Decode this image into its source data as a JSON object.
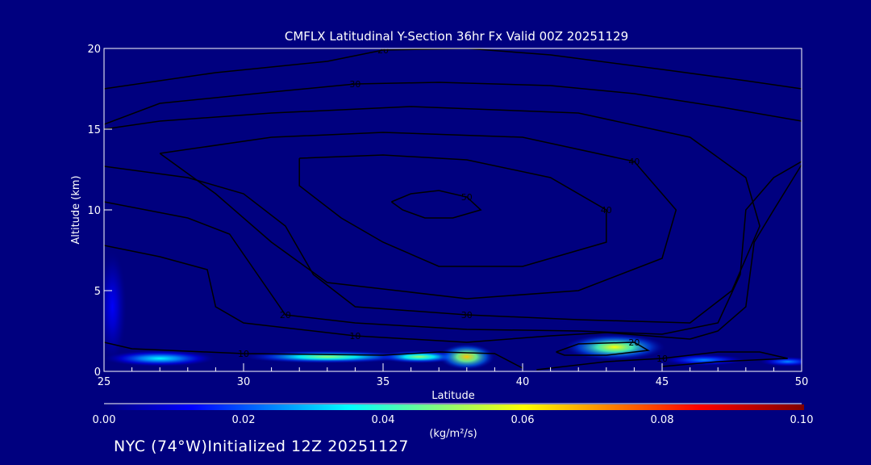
{
  "chart_data": {
    "type": "heatmap",
    "title": "CMFLX Latitudinal Y-Section 36hr  Fx Valid 00Z 20251129",
    "xlabel": "Latitude",
    "ylabel": "Altitude (km)",
    "xlim": [
      25,
      50
    ],
    "ylim": [
      0,
      20
    ],
    "xticks": [
      "25",
      "30",
      "35",
      "40",
      "45",
      "50"
    ],
    "yticks": [
      "0",
      "5",
      "10",
      "15",
      "20"
    ],
    "colorbar": {
      "ticks": [
        "0.00",
        "0.02",
        "0.04",
        "0.06",
        "0.08",
        "0.10"
      ],
      "range": [
        0,
        0.1
      ],
      "units": "(kg/m²/s)"
    },
    "hotspots": [
      {
        "lat": 25.3,
        "alt": 4.0,
        "value": 0.012,
        "rx": 0.5,
        "ry": 3.5
      },
      {
        "lat": 27.0,
        "alt": 0.8,
        "value": 0.035,
        "rx": 2.0,
        "ry": 0.5
      },
      {
        "lat": 33.0,
        "alt": 0.9,
        "value": 0.05,
        "rx": 3.0,
        "ry": 0.4
      },
      {
        "lat": 36.3,
        "alt": 0.9,
        "value": 0.05,
        "rx": 1.5,
        "ry": 0.4
      },
      {
        "lat": 38.0,
        "alt": 0.9,
        "value": 0.066,
        "rx": 1.0,
        "ry": 0.8
      },
      {
        "lat": 43.3,
        "alt": 1.5,
        "value": 0.06,
        "rx": 1.8,
        "ry": 0.8
      },
      {
        "lat": 46.5,
        "alt": 0.7,
        "value": 0.025,
        "rx": 1.5,
        "ry": 0.35
      },
      {
        "lat": 49.5,
        "alt": 0.6,
        "value": 0.025,
        "rx": 1.0,
        "ry": 0.3
      }
    ],
    "contours": [
      {
        "label": "20",
        "points": [
          [
            25,
            17.5
          ],
          [
            29,
            18.5
          ],
          [
            33,
            19.2
          ],
          [
            35,
            19.9
          ],
          [
            38,
            20
          ],
          [
            41,
            19.6
          ],
          [
            45,
            18.7
          ],
          [
            48,
            18.0
          ],
          [
            50,
            17.5
          ]
        ]
      },
      {
        "label": "30",
        "points": [
          [
            25,
            15.3
          ],
          [
            27,
            16.6
          ],
          [
            31,
            17.3
          ],
          [
            34,
            17.8
          ],
          [
            37,
            17.9
          ],
          [
            41,
            17.7
          ],
          [
            44,
            17.2
          ],
          [
            47,
            16.4
          ],
          [
            50,
            15.5
          ]
        ]
      },
      {
        "label": "40",
        "points": [
          [
            27,
            13.5
          ],
          [
            31,
            14.5
          ],
          [
            35,
            14.8
          ],
          [
            40,
            14.5
          ],
          [
            44,
            13
          ],
          [
            45.5,
            10
          ],
          [
            45,
            7
          ],
          [
            42,
            5
          ],
          [
            38,
            4.5
          ],
          [
            33,
            5.5
          ],
          [
            31,
            8
          ],
          [
            29,
            11
          ],
          [
            27,
            13.5
          ]
        ]
      },
      {
        "label": "40",
        "points": [
          [
            32,
            13.2
          ],
          [
            35,
            13.4
          ],
          [
            38,
            13.1
          ],
          [
            41,
            12
          ],
          [
            43,
            10
          ],
          [
            43,
            8
          ],
          [
            40,
            6.5
          ],
          [
            37,
            6.5
          ],
          [
            35,
            8
          ],
          [
            33.5,
            9.5
          ],
          [
            32,
            11.5
          ],
          [
            32,
            13.2
          ]
        ]
      },
      {
        "label": "50",
        "points": [
          [
            35.3,
            10.5
          ],
          [
            36,
            11
          ],
          [
            37,
            11.2
          ],
          [
            38,
            10.8
          ],
          [
            38.5,
            10
          ],
          [
            37.5,
            9.5
          ],
          [
            36.5,
            9.5
          ],
          [
            35.7,
            10
          ],
          [
            35.3,
            10.5
          ]
        ]
      },
      {
        "label": "30",
        "points": [
          [
            25,
            12.7
          ],
          [
            28,
            12
          ],
          [
            30,
            11
          ],
          [
            31.5,
            9
          ],
          [
            32.5,
            6
          ],
          [
            34,
            4
          ],
          [
            38,
            3.5
          ],
          [
            42,
            3.2
          ],
          [
            46,
            3
          ],
          [
            47.5,
            5
          ],
          [
            48.5,
            9
          ],
          [
            48,
            12
          ],
          [
            46,
            14.5
          ],
          [
            42,
            16
          ],
          [
            36,
            16.4
          ],
          [
            31,
            16
          ],
          [
            27,
            15.5
          ],
          [
            25,
            15
          ]
        ]
      },
      {
        "label": "20",
        "points": [
          [
            25,
            10.5
          ],
          [
            28,
            9.5
          ],
          [
            29.5,
            8.5
          ],
          [
            30.5,
            6
          ],
          [
            31.5,
            3.5
          ],
          [
            34,
            3
          ],
          [
            38,
            2.6
          ],
          [
            42,
            2.5
          ],
          [
            45,
            2.3
          ],
          [
            47,
            3
          ],
          [
            47.8,
            6
          ],
          [
            48,
            10
          ],
          [
            49,
            12
          ],
          [
            50,
            13
          ]
        ]
      },
      {
        "label": "10",
        "points": [
          [
            25,
            7.8
          ],
          [
            27,
            7.1
          ],
          [
            28.7,
            6.3
          ],
          [
            29,
            4
          ],
          [
            30,
            3
          ],
          [
            34,
            2.2
          ],
          [
            38,
            1.8
          ],
          [
            41,
            2.2
          ],
          [
            43,
            2.4
          ],
          [
            46,
            2.0
          ],
          [
            47,
            2.5
          ],
          [
            48,
            4
          ],
          [
            48.3,
            8
          ],
          [
            49,
            10
          ],
          [
            50,
            12.8
          ]
        ]
      },
      {
        "label": "10",
        "points": [
          [
            25,
            1.8
          ],
          [
            26,
            1.4
          ],
          [
            30,
            1.1
          ],
          [
            35,
            1.0
          ],
          [
            37,
            1.2
          ],
          [
            39,
            1.1
          ],
          [
            40,
            0.2
          ]
        ]
      },
      {
        "label": "20",
        "points": [
          [
            41.2,
            1.2
          ],
          [
            42,
            1.7
          ],
          [
            44,
            1.8
          ],
          [
            44.5,
            1.3
          ],
          [
            43,
            1.0
          ],
          [
            41.5,
            1.0
          ],
          [
            41.2,
            1.2
          ]
        ]
      },
      {
        "label": "10",
        "points": [
          [
            40.5,
            0.1
          ],
          [
            43,
            0.6
          ],
          [
            45,
            0.8
          ],
          [
            47,
            1.2
          ],
          [
            48.5,
            1.2
          ],
          [
            49.5,
            0.8
          ],
          [
            47,
            0.6
          ],
          [
            45,
            0.3
          ]
        ]
      }
    ]
  },
  "footer": "NYC (74°W)Initialized 12Z 20251127"
}
